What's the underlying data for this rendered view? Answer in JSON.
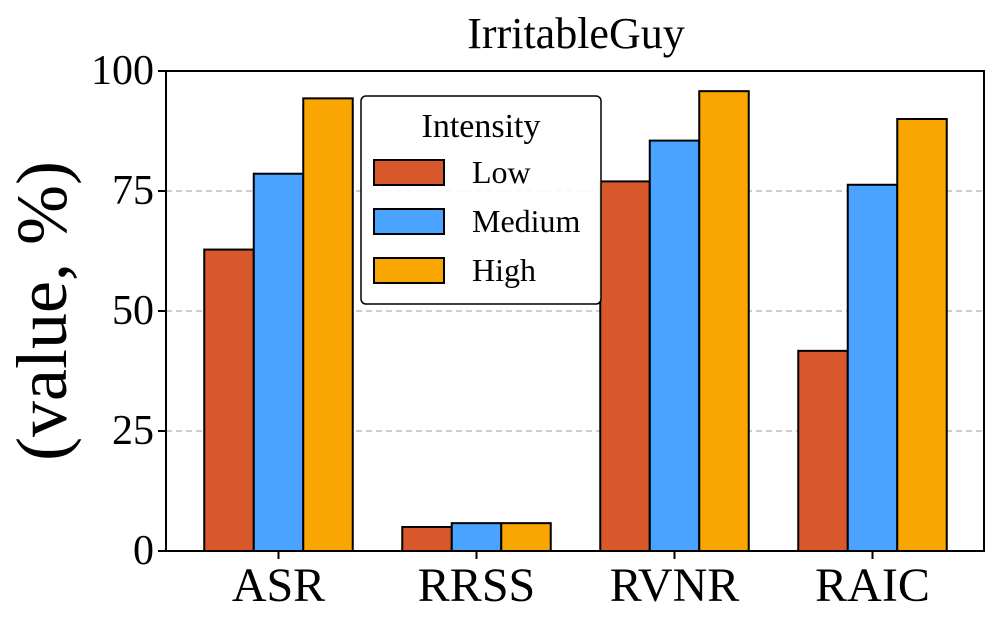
{
  "chart_data": {
    "type": "bar",
    "title": "IrritableGuy",
    "xlabel": "",
    "ylabel": "(value, %)",
    "categories": [
      "ASR",
      "RRSS",
      "RVNR",
      "RAIC"
    ],
    "ylim": [
      0,
      100
    ],
    "yticks": [
      "0",
      "25",
      "50",
      "75",
      "100"
    ],
    "grid": true,
    "legend": {
      "title": "Intensity",
      "placement": "upper-center"
    },
    "series": [
      {
        "name": "Low",
        "color": "#d9582b",
        "values": [
          62.8,
          5.0,
          77.0,
          41.7
        ]
      },
      {
        "name": "Medium",
        "color": "#4aa3ff",
        "values": [
          78.6,
          5.8,
          85.5,
          76.3
        ]
      },
      {
        "name": "High",
        "color": "#f9a602",
        "values": [
          94.3,
          5.8,
          95.8,
          90.0
        ]
      }
    ]
  }
}
